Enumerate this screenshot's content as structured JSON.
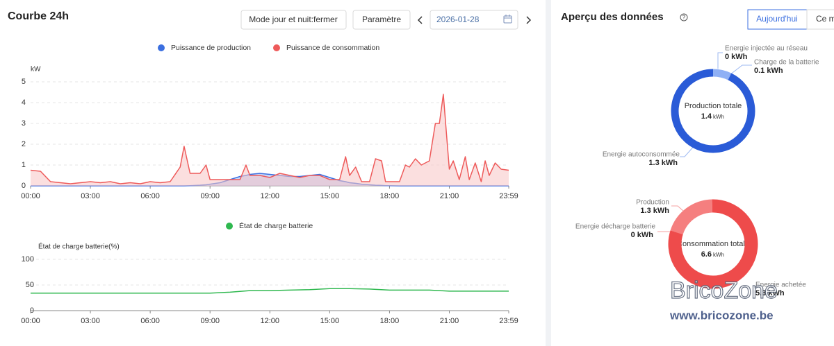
{
  "header": {
    "title": "Courbe 24h",
    "buttons": [
      "Mode jour et nuit:fermer",
      "Paramètre"
    ],
    "date": "2026-01-28"
  },
  "overview": {
    "title": "Aperçu des données",
    "tabs": [
      "Aujourd'hui",
      "Ce m"
    ]
  },
  "chart_data": [
    {
      "type": "line",
      "y_label": "kW",
      "xlim": [
        0,
        23.98
      ],
      "ylim": [
        0,
        5
      ],
      "yticks": [
        0,
        1,
        2,
        3,
        4,
        5
      ],
      "xticks": [
        {
          "value": 0,
          "label": "00:00"
        },
        {
          "value": 3,
          "label": "03:00"
        },
        {
          "value": 6,
          "label": "06:00"
        },
        {
          "value": 9,
          "label": "09:00"
        },
        {
          "value": 12,
          "label": "12:00"
        },
        {
          "value": 15,
          "label": "15:00"
        },
        {
          "value": 18,
          "label": "18:00"
        },
        {
          "value": 21,
          "label": "21:00"
        },
        {
          "value": 23.98,
          "label": "23:59"
        }
      ],
      "grid": true,
      "x": [
        0,
        0.5,
        1,
        1.5,
        2,
        2.5,
        3,
        3.5,
        4,
        4.5,
        5,
        5.5,
        6,
        6.5,
        7,
        7.5,
        7.7,
        8,
        8.5,
        8.8,
        9,
        9.5,
        10,
        10.5,
        10.8,
        11,
        11.5,
        12,
        12.5,
        13,
        13.5,
        14,
        14.5,
        15,
        15.5,
        15.8,
        16,
        16.3,
        16.6,
        17,
        17.3,
        17.6,
        17.8,
        18,
        18.5,
        18.8,
        19,
        19.3,
        19.6,
        20,
        20.3,
        20.5,
        20.7,
        20.9,
        21,
        21.2,
        21.5,
        21.8,
        22,
        22.3,
        22.6,
        22.8,
        23,
        23.3,
        23.6,
        23.98
      ],
      "series": [
        {
          "name": "Puissance de production",
          "color": "#3b6fe0",
          "fill": "#9db8f2",
          "values": [
            0,
            0,
            0,
            0,
            0,
            0,
            0,
            0,
            0,
            0,
            0,
            0,
            0,
            0,
            0,
            0,
            0,
            0.01,
            0.03,
            0.05,
            0.08,
            0.15,
            0.3,
            0.45,
            0.5,
            0.55,
            0.6,
            0.55,
            0.5,
            0.45,
            0.45,
            0.5,
            0.55,
            0.4,
            0.25,
            0.2,
            0.15,
            0.12,
            0.08,
            0.05,
            0.03,
            0.02,
            0.01,
            0.01,
            0,
            0,
            0,
            0,
            0,
            0,
            0,
            0,
            0,
            0,
            0,
            0,
            0,
            0,
            0,
            0,
            0,
            0,
            0,
            0,
            0,
            0
          ]
        },
        {
          "name": "Puissance de consommation",
          "color": "#ee5a5a",
          "fill": "#f8c4c4",
          "values": [
            0.75,
            0.7,
            0.2,
            0.15,
            0.1,
            0.15,
            0.2,
            0.15,
            0.2,
            0.1,
            0.15,
            0.1,
            0.2,
            0.15,
            0.2,
            0.9,
            1.9,
            0.6,
            0.6,
            1.0,
            0.3,
            0.3,
            0.3,
            0.3,
            1.0,
            0.5,
            0.5,
            0.4,
            0.6,
            0.5,
            0.4,
            0.5,
            0.5,
            0.3,
            0.3,
            1.4,
            0.5,
            0.9,
            0.2,
            0.2,
            1.3,
            1.2,
            0.2,
            0.2,
            0.2,
            1.0,
            0.9,
            1.3,
            1.0,
            1.2,
            3.0,
            3.0,
            4.4,
            2.0,
            0.8,
            1.2,
            0.3,
            1.4,
            0.3,
            1.1,
            0.2,
            1.2,
            0.5,
            1.1,
            0.8,
            0.75
          ]
        }
      ]
    },
    {
      "type": "line",
      "y_label": "État de charge batterie(%)",
      "xlim": [
        0,
        23.98
      ],
      "ylim": [
        0,
        100
      ],
      "yticks": [
        0,
        50,
        100
      ],
      "xticks": [
        {
          "value": 0,
          "label": "00:00"
        },
        {
          "value": 3,
          "label": "03:00"
        },
        {
          "value": 6,
          "label": "06:00"
        },
        {
          "value": 9,
          "label": "09:00"
        },
        {
          "value": 12,
          "label": "12:00"
        },
        {
          "value": 15,
          "label": "15:00"
        },
        {
          "value": 18,
          "label": "18:00"
        },
        {
          "value": 21,
          "label": "21:00"
        },
        {
          "value": 23.98,
          "label": "23:59"
        }
      ],
      "grid": true,
      "x": [
        0,
        9,
        10,
        11,
        12,
        13,
        14,
        15,
        16,
        17,
        18,
        19,
        20,
        21,
        22,
        23.98
      ],
      "series": [
        {
          "name": "État de charge batterie",
          "color": "#2fb84f",
          "values": [
            34,
            34,
            36,
            39,
            39,
            40,
            41,
            43,
            43,
            42,
            40,
            40,
            40,
            38,
            38,
            38
          ]
        }
      ]
    },
    {
      "type": "donut",
      "center_label": "Production totale",
      "total": 1.4,
      "unit": "kWh",
      "categories": [
        "Energie injectée au réseau",
        "Charge de la batterie",
        "Energie autoconsommée"
      ],
      "values": [
        0,
        0.1,
        1.3
      ],
      "value_labels": [
        "0 kWh",
        "0.1 kWh",
        "1.3 kWh"
      ],
      "colors": [
        "#9db8f2",
        "#8fb0f5",
        "#2a5bd7"
      ]
    },
    {
      "type": "donut",
      "center_label": "Consommation totale",
      "total": 6.6,
      "unit": "kWh",
      "categories": [
        "Production",
        "Energie décharge batterie",
        "Energie achetée"
      ],
      "values": [
        1.3,
        0,
        5.3
      ],
      "value_labels": [
        "1.3 kWh",
        "0 kWh",
        "5.3 kWh"
      ],
      "colors": [
        "#f57f7f",
        "#f9a0a0",
        "#ee4b4b"
      ]
    }
  ],
  "watermark": {
    "text": "BricoZone",
    "url": "www.bricozone.be"
  }
}
